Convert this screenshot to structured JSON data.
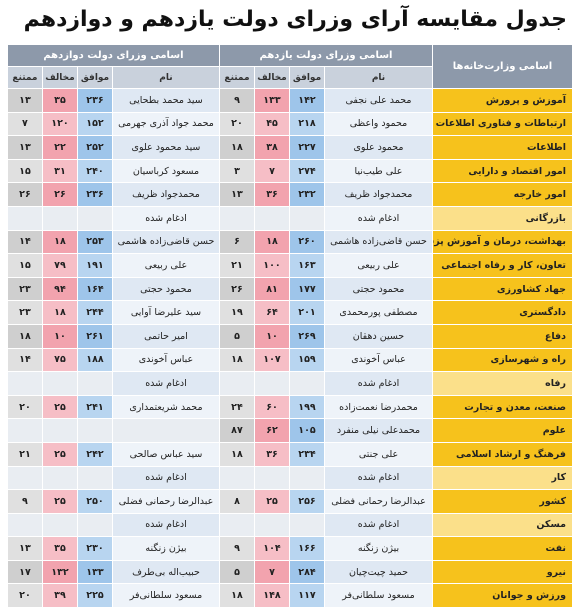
{
  "title": "جدول مقایسه آرای وزرای دولت یازدهم و دوازدهم",
  "table": {
    "ministry_header": "اسامی وزارت‌خانه‌ها",
    "groups": [
      {
        "title": "اسامی وزرای دولت یازدهم",
        "columns": [
          "نام",
          "موافق",
          "مخالف",
          "ممتنع"
        ]
      },
      {
        "title": "اسامی وزرای دولت دوازدهم",
        "columns": [
          "نام",
          "موافق",
          "مخالف",
          "ممتنع"
        ]
      }
    ],
    "rows": [
      {
        "ministry": "آموزش و پرورش",
        "eleventh": [
          "محمد علی نجفی",
          "۱۴۲",
          "۱۳۳",
          "۹"
        ],
        "twelfth": [
          "سید محمد بطحایی",
          "۲۳۶",
          "۳۵",
          "۱۳"
        ]
      },
      {
        "ministry": "ارتباطات و فناوری اطلاعات",
        "eleventh": [
          "محمود واعظی",
          "۲۱۸",
          "۴۵",
          "۲۰"
        ],
        "twelfth": [
          "محمد جواد آذری جهرمی",
          "۱۵۲",
          "۱۲۰",
          "۷"
        ]
      },
      {
        "ministry": "اطلاعات",
        "eleventh": [
          "محمود علوی",
          "۲۲۷",
          "۳۸",
          "۱۸"
        ],
        "twelfth": [
          "سید محمود علوی",
          "۲۵۲",
          "۲۲",
          "۱۳"
        ]
      },
      {
        "ministry": "امور اقتصاد و دارایی",
        "eleventh": [
          "علی طیب‌نیا",
          "۲۷۴",
          "۷",
          "۳"
        ],
        "twelfth": [
          "مسعود کرباسیان",
          "۲۴۰",
          "۳۱",
          "۱۵"
        ]
      },
      {
        "ministry": "امور خارجه",
        "eleventh": [
          "محمدجواد ظریف",
          "۲۳۲",
          "۳۶",
          "۱۳"
        ],
        "twelfth": [
          "محمدجواد ظریف",
          "۲۳۶",
          "۲۶",
          "۲۶"
        ]
      },
      {
        "ministry": "بازرگانی",
        "eleventh": [
          "ادغام شده"
        ],
        "twelfth": [
          "ادغام شده"
        ]
      },
      {
        "ministry": "بهداشت، درمان و آموزش پزشکی",
        "eleventh": [
          "حسن قاضی‌زاده هاشمی",
          "۲۶۰",
          "۱۸",
          "۶"
        ],
        "twelfth": [
          "حسن قاضی‌زاده هاشمی",
          "۲۵۳",
          "۱۸",
          "۱۴"
        ]
      },
      {
        "ministry": "تعاون، کار و رفاه اجتماعی",
        "eleventh": [
          "علی ربیعی",
          "۱۶۳",
          "۱۰۰",
          "۲۱"
        ],
        "twelfth": [
          "علی ربیعی",
          "۱۹۱",
          "۷۹",
          "۱۵"
        ]
      },
      {
        "ministry": "جهاد کشاورزی",
        "eleventh": [
          "محمود حجتی",
          "۱۷۷",
          "۸۱",
          "۲۶"
        ],
        "twelfth": [
          "محمود حجتی",
          "۱۶۴",
          "۹۴",
          "۲۳"
        ]
      },
      {
        "ministry": "دادگستری",
        "eleventh": [
          "مصطفی پورمحمدی",
          "۲۰۱",
          "۶۴",
          "۱۹"
        ],
        "twelfth": [
          "سید علیرضا آوایی",
          "۲۴۴",
          "۱۸",
          "۲۳"
        ]
      },
      {
        "ministry": "دفاع",
        "eleventh": [
          "حسین دهقان",
          "۲۶۹",
          "۱۰",
          "۵"
        ],
        "twelfth": [
          "امیر حاتمی",
          "۲۶۱",
          "۱۰",
          "۱۸"
        ]
      },
      {
        "ministry": "راه و شهرسازی",
        "eleventh": [
          "عباس آخوندی",
          "۱۵۹",
          "۱۰۷",
          "۱۸"
        ],
        "twelfth": [
          "عباس آخوندی",
          "۱۸۸",
          "۷۵",
          "۱۴"
        ]
      },
      {
        "ministry": "رفاه",
        "eleventh": [
          "ادغام شده"
        ],
        "twelfth": [
          "ادغام شده"
        ]
      },
      {
        "ministry": "صنعت، معدن و تجارت",
        "eleventh": [
          "محمدرضا نعمت‌زاده",
          "۱۹۹",
          "۶۰",
          "۲۴"
        ],
        "twelfth": [
          "محمد شریعتمداری",
          "۲۴۱",
          "۲۵",
          "۲۰"
        ]
      },
      {
        "ministry": "علوم",
        "eleventh": [
          "محمدعلی نیلی منفرد",
          "۱۰۵",
          "۶۲",
          "۸۷"
        ],
        "twelfth": []
      },
      {
        "ministry": "فرهنگ و ارشاد اسلامی",
        "eleventh": [
          "علی جنتی",
          "۲۳۴",
          "۳۶",
          "۱۸"
        ],
        "twelfth": [
          "سید عباس صالحی",
          "۲۴۲",
          "۲۵",
          "۲۱"
        ]
      },
      {
        "ministry": "کار",
        "eleventh": [
          "ادغام شده"
        ],
        "twelfth": [
          "ادغام شده"
        ]
      },
      {
        "ministry": "کشور",
        "eleventh": [
          "عبدالرضا رحمانی فضلی",
          "۲۵۶",
          "۲۵",
          "۸"
        ],
        "twelfth": [
          "عبدالرضا رحمانی فضلی",
          "۲۵۰",
          "۲۵",
          "۹"
        ]
      },
      {
        "ministry": "مسکن",
        "eleventh": [
          "ادغام شده"
        ],
        "twelfth": [
          "ادغام شده"
        ]
      },
      {
        "ministry": "نفت",
        "eleventh": [
          "بیژن زنگنه",
          "۱۶۶",
          "۱۰۴",
          "۹"
        ],
        "twelfth": [
          "بیژن زنگنه",
          "۲۳۰",
          "۳۵",
          "۱۳"
        ]
      },
      {
        "ministry": "نیرو",
        "eleventh": [
          "حمید چیت‌چیان",
          "۲۸۴",
          "۷",
          "۵"
        ],
        "twelfth": [
          "حبیب‌اله بی‌طرف",
          "۱۳۳",
          "۱۳۲",
          "۱۷"
        ]
      },
      {
        "ministry": "ورزش و جوانان",
        "eleventh": [
          "مسعود سلطانی‌فر",
          "۱۱۷",
          "۱۴۸",
          "۱۸"
        ],
        "twelfth": [
          "مسعود سلطانی‌فر",
          "۲۲۵",
          "۳۹",
          "۲۰"
        ]
      }
    ]
  }
}
